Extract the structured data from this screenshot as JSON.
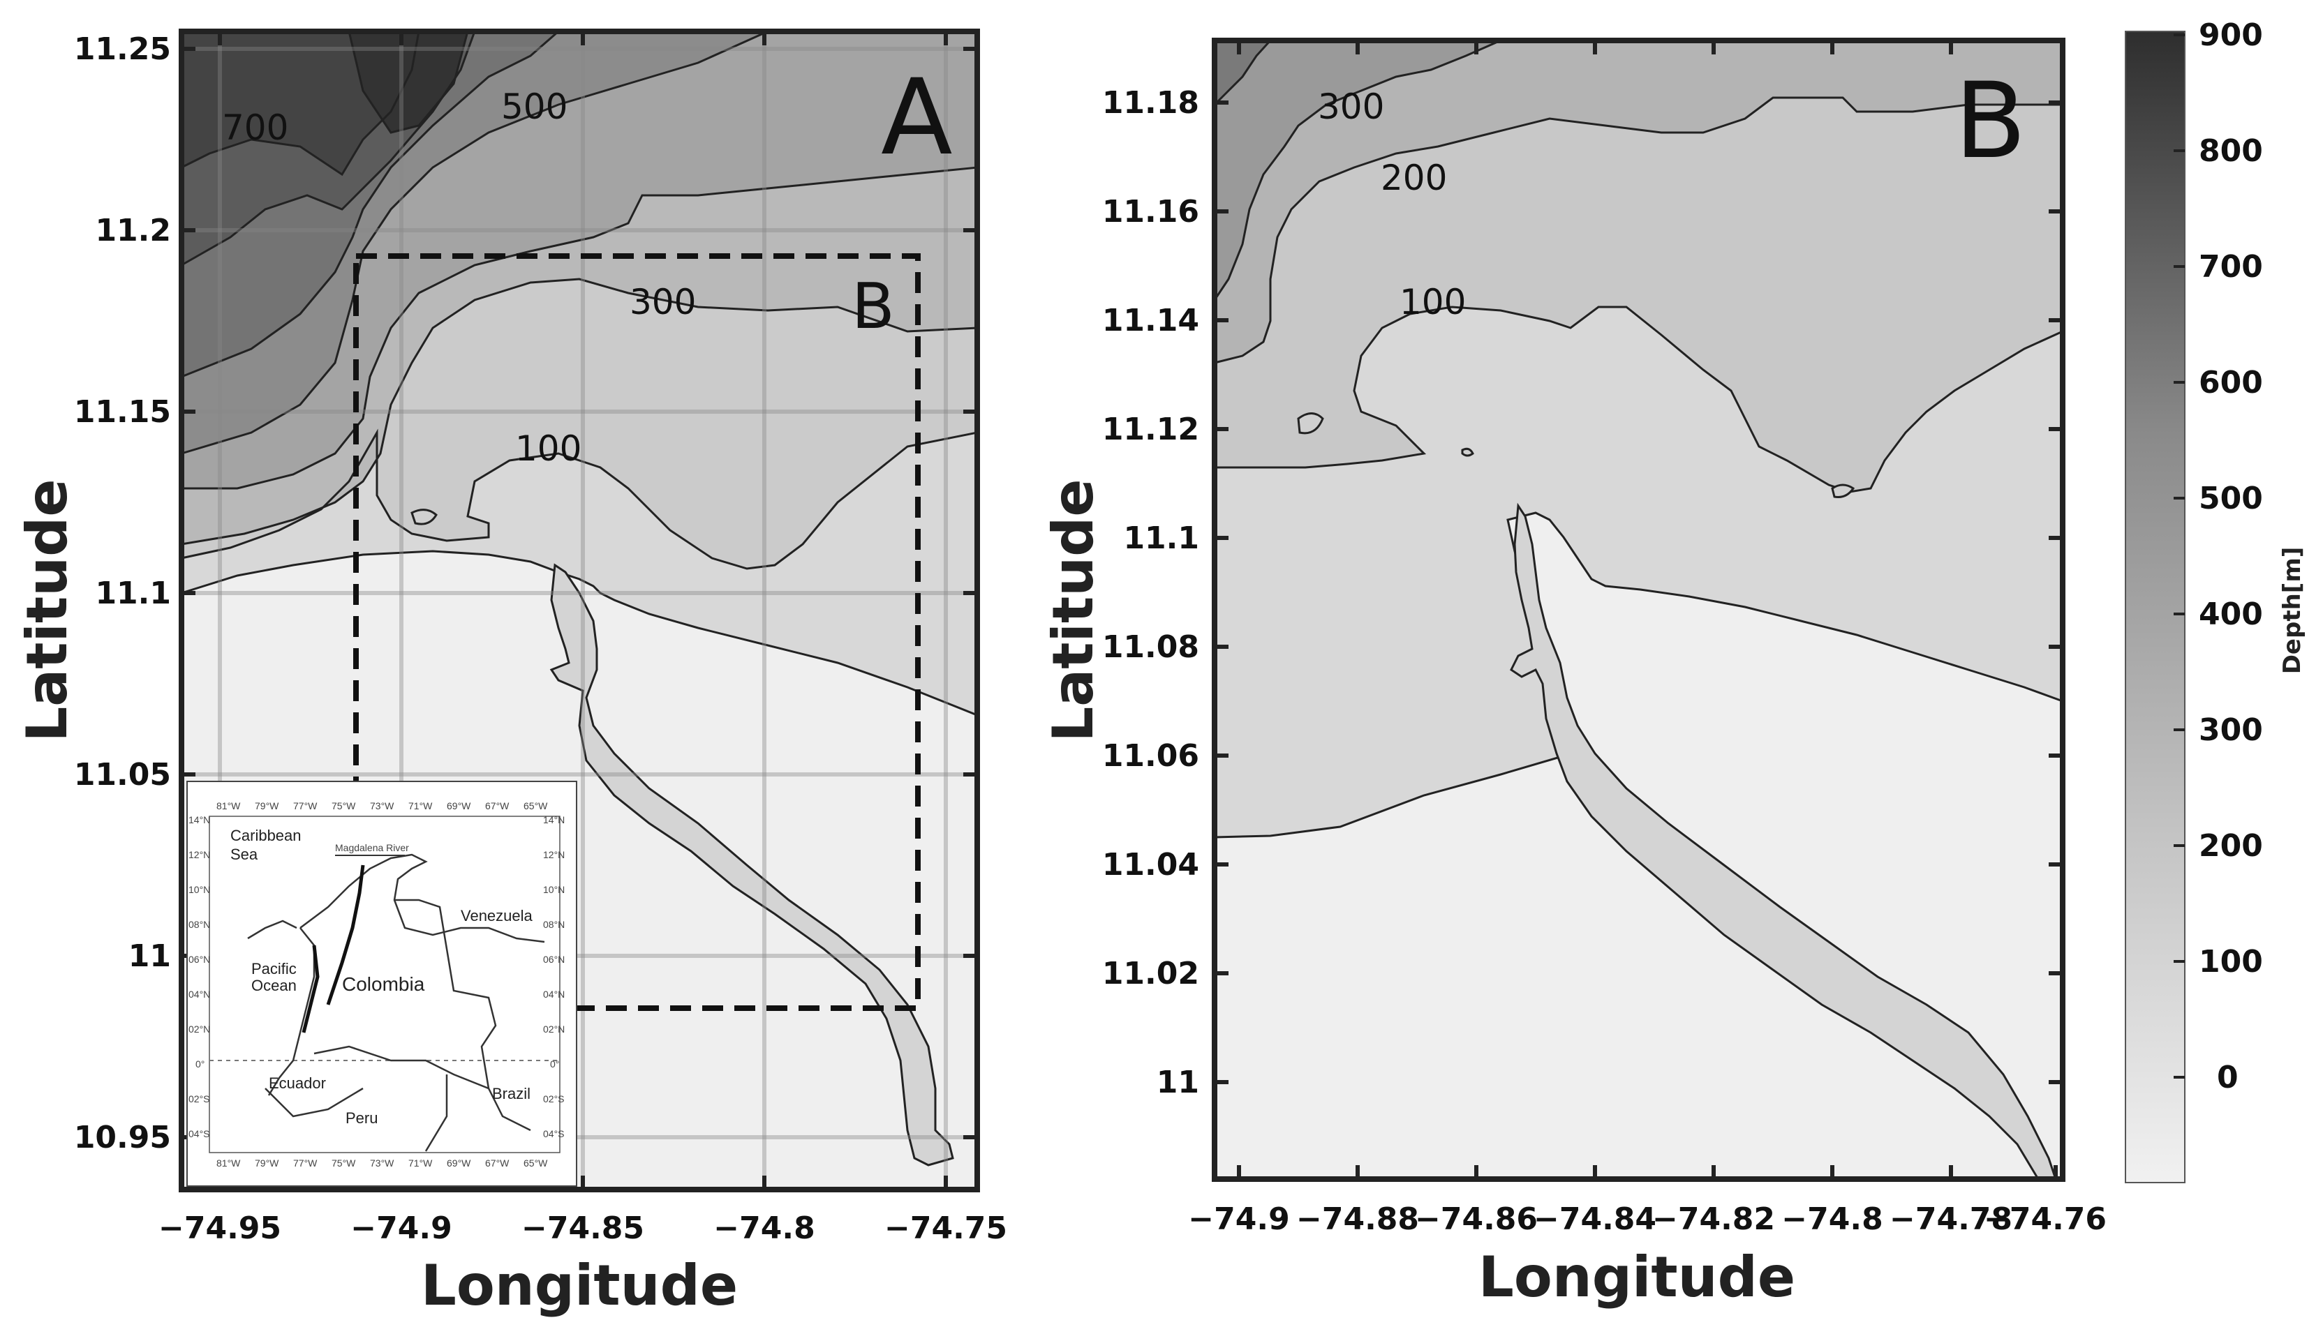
{
  "panel_a": {
    "letter": "A",
    "inset_letter": "B",
    "x_label": "Longitude",
    "y_label": "Latitude",
    "x_ticks": [
      "−74.95",
      "−74.9",
      "−74.85",
      "−74.8",
      "−74.75"
    ],
    "y_ticks": [
      "11.25",
      "11.2",
      "11.15",
      "11.1",
      "11.05",
      "11",
      "10.95"
    ],
    "contour_labels": [
      "700",
      "500",
      "300",
      "100"
    ]
  },
  "panel_b": {
    "letter": "B",
    "x_label": "Longitude",
    "y_label": "Latitude",
    "x_ticks": [
      "−74.9",
      "−74.88",
      "−74.86",
      "−74.84",
      "−74.82",
      "−74.8",
      "−74.78",
      "−74.76"
    ],
    "y_ticks": [
      "11.18",
      "11.16",
      "11.14",
      "11.12",
      "11.1",
      "11.08",
      "11.06",
      "11.04",
      "11.02",
      "11"
    ],
    "contour_labels": [
      "300",
      "200",
      "100"
    ]
  },
  "colorbar": {
    "label": "Depth[m]",
    "ticks": [
      "900",
      "800",
      "700",
      "600",
      "500",
      "400",
      "300",
      "200",
      "100",
      "0"
    ],
    "color_top": "#2e2e2e",
    "color_bottom": "#f1f1f1"
  },
  "inset_map": {
    "top_lon_ticks": [
      "81°W",
      "79°W",
      "77°W",
      "75°W",
      "73°W",
      "71°W",
      "69°W",
      "67°W",
      "65°W"
    ],
    "bottom_lon_ticks": [
      "81°W",
      "79°W",
      "77°W",
      "75°W",
      "73°W",
      "71°W",
      "69°W",
      "67°W",
      "65°W"
    ],
    "lat_ticks": [
      "14°N",
      "12°N",
      "10°N",
      "08°N",
      "06°N",
      "04°N",
      "02°N",
      "0°",
      "02°S",
      "04°S"
    ],
    "sea_label_1": "Caribbean",
    "sea_label_2": "Sea",
    "river_label": "Magdalena River",
    "ocean_label_1": "Pacific",
    "ocean_label_2": "Ocean",
    "countries": [
      "Venezuela",
      "Colombia",
      "Ecuador",
      "Peru",
      "Brazil"
    ]
  }
}
